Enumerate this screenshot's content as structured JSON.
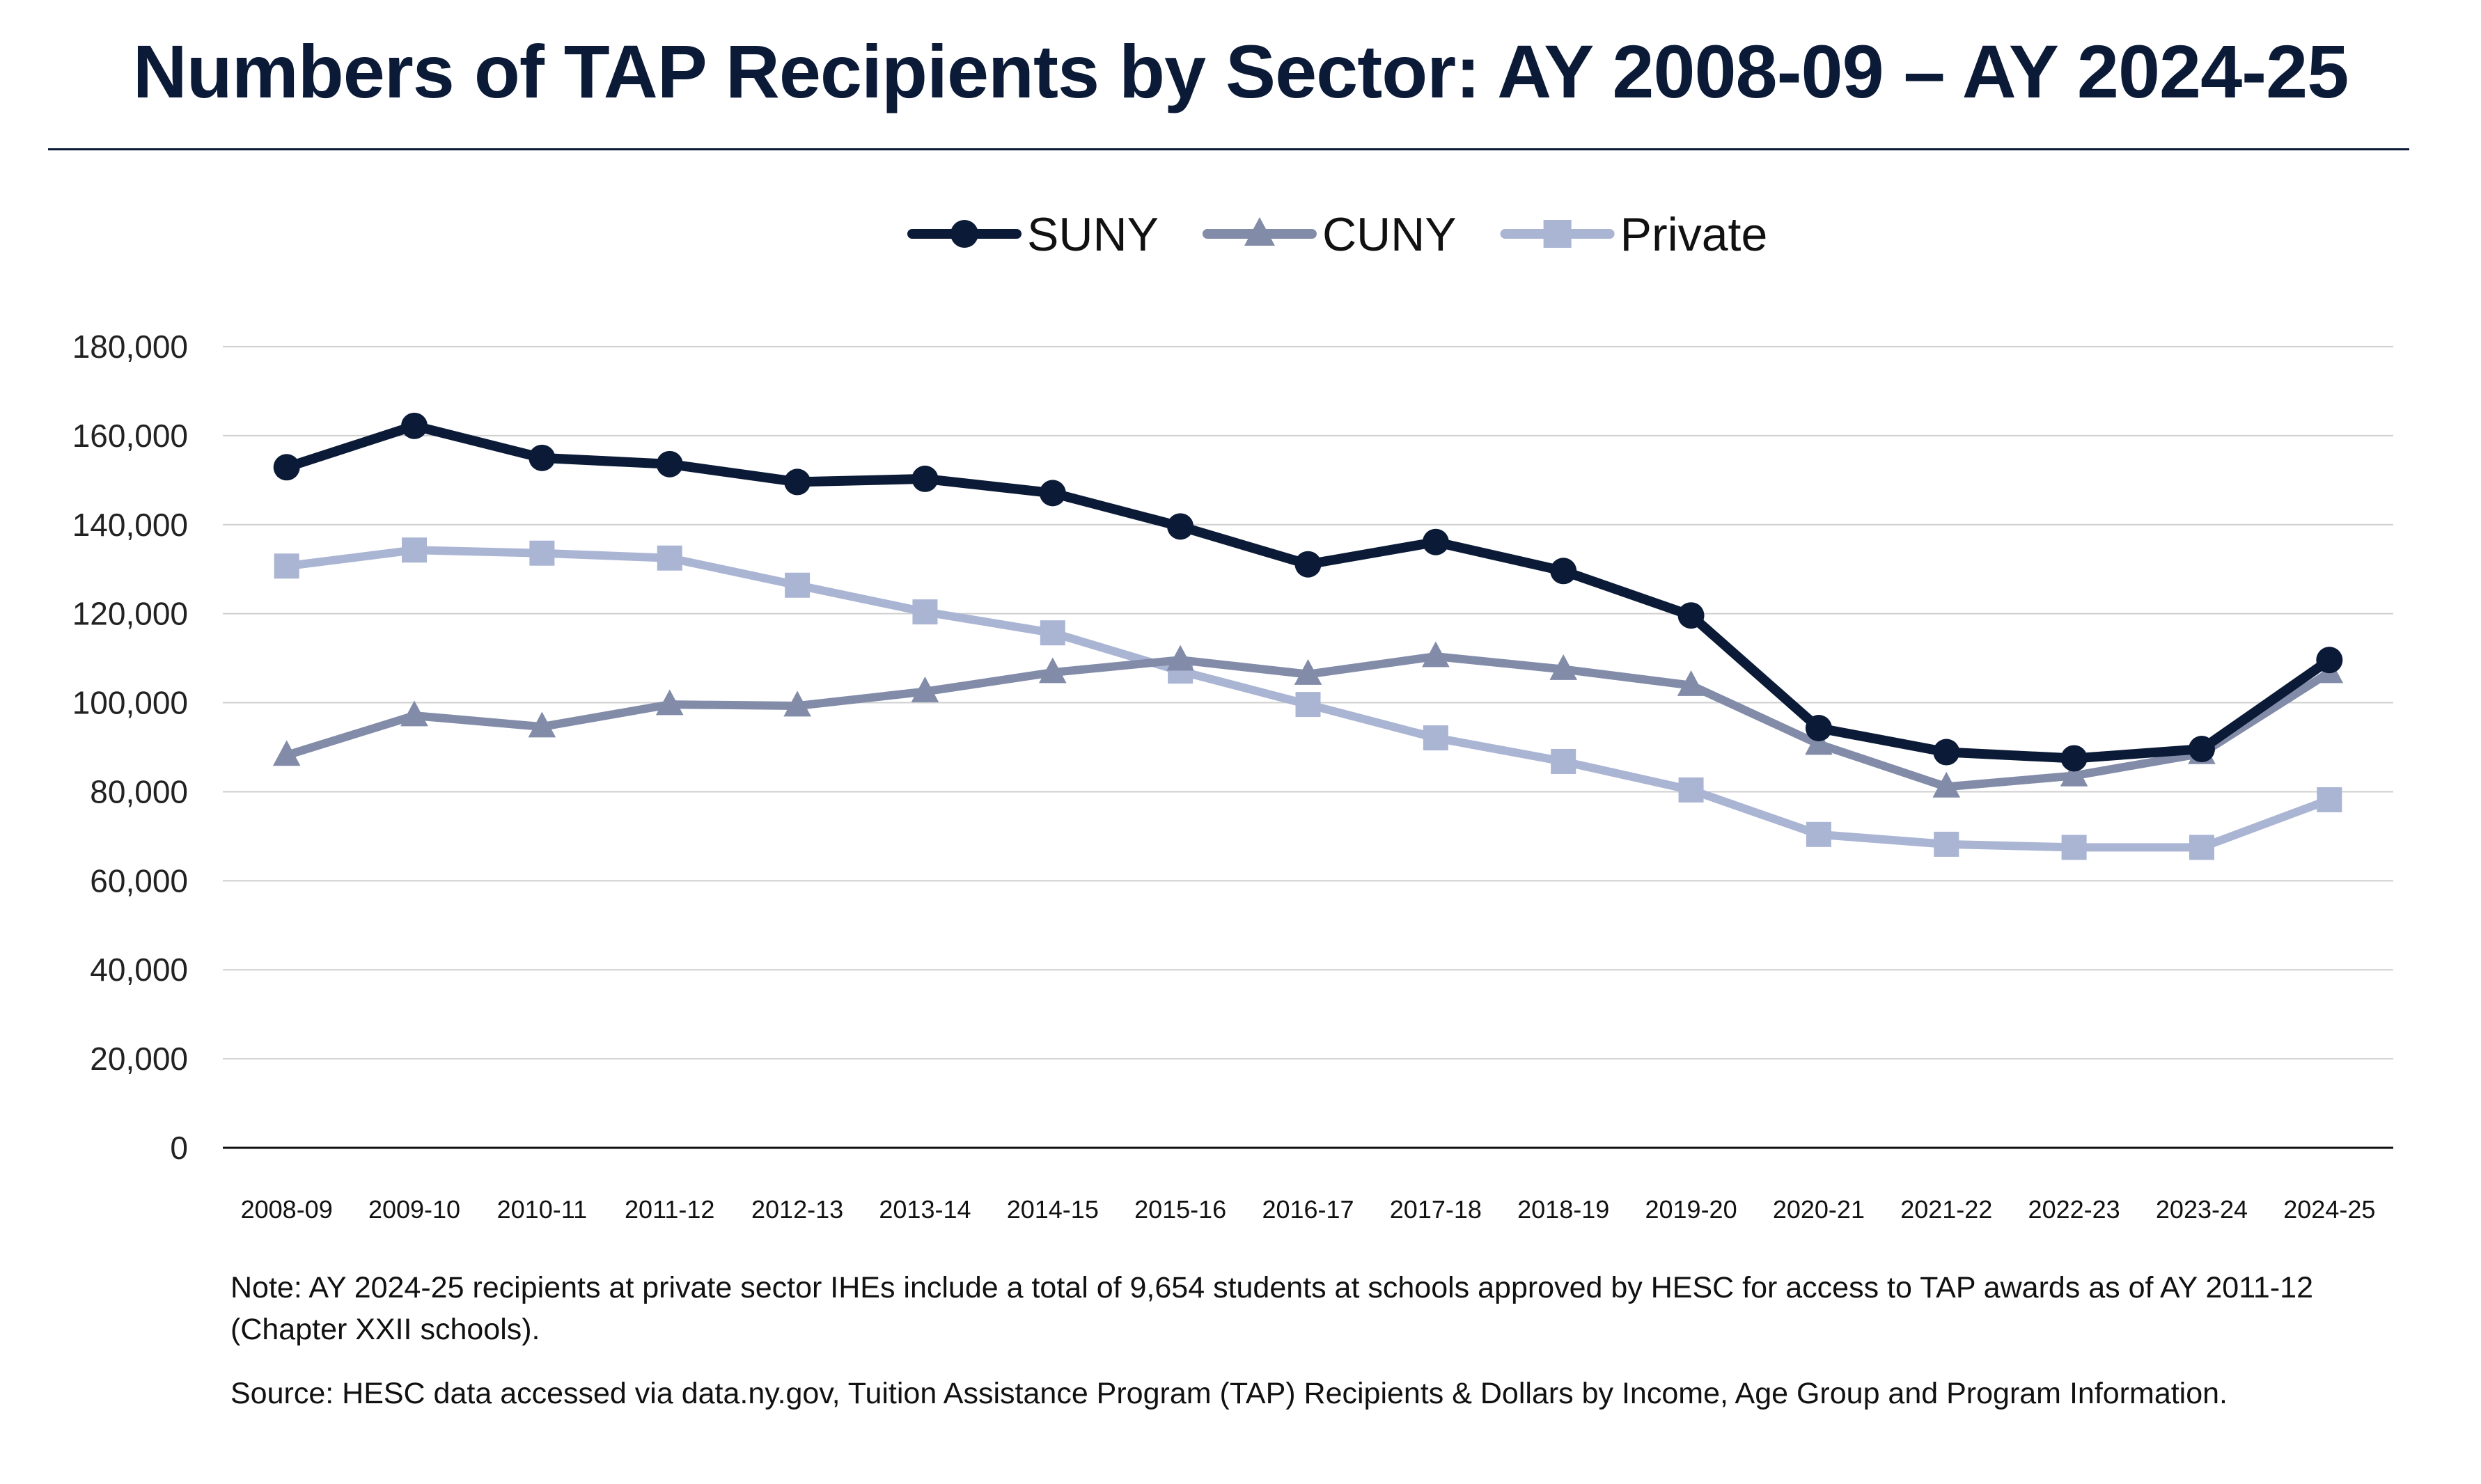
{
  "chart_data": {
    "type": "line",
    "title": "Numbers of TAP Recipients by Sector: AY 2008-09 – AY 2024-25",
    "xlabel": "",
    "ylabel": "",
    "ylim": [
      0,
      180000
    ],
    "yticks": [
      0,
      20000,
      40000,
      60000,
      80000,
      100000,
      120000,
      140000,
      160000,
      180000
    ],
    "ytick_labels": [
      "0",
      "20,000",
      "40,000",
      "60,000",
      "80,000",
      "100,000",
      "120,000",
      "140,000",
      "160,000",
      "180,000"
    ],
    "grid": true,
    "legend_placement": "top",
    "categories": [
      "2008-09",
      "2009-10",
      "2010-11",
      "2011-12",
      "2012-13",
      "2013-14",
      "2014-15",
      "2015-16",
      "2016-17",
      "2017-18",
      "2018-19",
      "2019-20",
      "2020-21",
      "2021-22",
      "2022-23",
      "2023-24",
      "2024-25"
    ],
    "series": [
      {
        "name": "SUNY",
        "color": "#0b1a36",
        "marker": "circle",
        "values": [
          152900,
          162200,
          155000,
          153600,
          149600,
          150300,
          147100,
          139600,
          131100,
          136100,
          129600,
          119600,
          94300,
          88900,
          87500,
          89600,
          109600
        ]
      },
      {
        "name": "CUNY",
        "color": "#828ca8",
        "marker": "triangle",
        "values": [
          88200,
          97100,
          94600,
          99600,
          99300,
          102500,
          106800,
          109600,
          106400,
          110400,
          107500,
          103900,
          90700,
          81100,
          83600,
          88600,
          106800
        ]
      },
      {
        "name": "Private",
        "color": "#aab5d4",
        "marker": "square",
        "values": [
          130700,
          134300,
          133600,
          132500,
          126400,
          120400,
          115700,
          107100,
          99600,
          92100,
          86800,
          80400,
          70400,
          68200,
          67500,
          67500,
          78200
        ]
      }
    ]
  },
  "notes": {
    "note": "Note: AY 2024-25 recipients at private sector IHEs include a total of 9,654 students at schools approved by HESC for access to TAP awards as of AY 2011-12 (Chapter XXII schools).",
    "source": "Source: HESC data accessed via data.ny.gov, Tuition Assistance Program (TAP) Recipients & Dollars by Income, Age Group and Program Information."
  }
}
